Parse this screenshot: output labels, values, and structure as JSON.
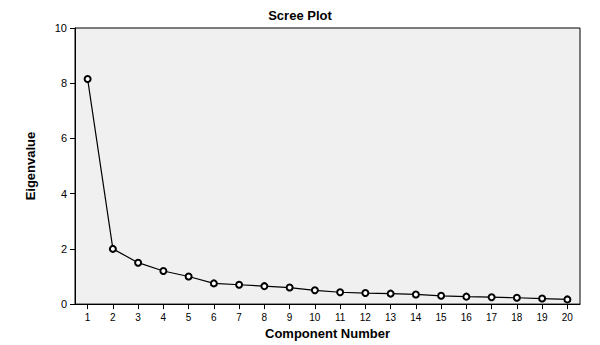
{
  "chart_data": {
    "type": "line",
    "title": "Scree Plot",
    "x_label": "Component Number",
    "y_label": "Eigenvalue",
    "categories": [
      "1",
      "2",
      "3",
      "4",
      "5",
      "6",
      "7",
      "8",
      "9",
      "10",
      "11",
      "12",
      "13",
      "14",
      "15",
      "16",
      "17",
      "18",
      "19",
      "20"
    ],
    "values": [
      8.15,
      2.0,
      1.5,
      1.2,
      1.0,
      0.75,
      0.7,
      0.65,
      0.6,
      0.5,
      0.43,
      0.4,
      0.38,
      0.35,
      0.3,
      0.27,
      0.25,
      0.23,
      0.2,
      0.17
    ],
    "color": "#000000",
    "marker": "circle",
    "line_style": "solid",
    "ylim": [
      0,
      10
    ],
    "yticks": [
      0,
      2,
      4,
      6,
      8,
      10
    ],
    "grid": false
  }
}
